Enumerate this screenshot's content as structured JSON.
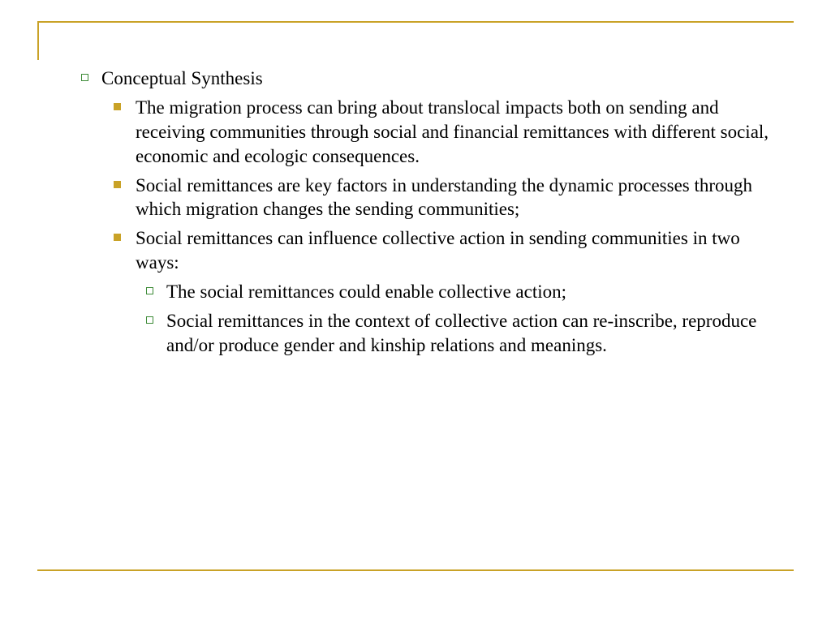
{
  "border_color": "#c9a227",
  "bullet_hollow_color": "#3d8b37",
  "bullet_solid_color": "#c9a227",
  "text_color": "#000000",
  "background_color": "#ffffff",
  "fontsize": 23,
  "slide": {
    "item1": {
      "heading": "Conceptual Synthesis",
      "sub1": "The migration process can bring about translocal impacts both on sending and receiving communities through social and financial remittances with different social, economic and ecologic consequences.",
      "sub2": "Social remittances are key factors in understanding the dynamic processes through which migration changes the sending communities;",
      "sub3": {
        "text": "Social remittances can influence collective action in sending communities in two ways:",
        "subsub1": "The social remittances could enable collective action;",
        "subsub2": "Social remittances in the context of collective action can re-inscribe, reproduce and/or produce gender and kinship relations and meanings."
      }
    }
  }
}
